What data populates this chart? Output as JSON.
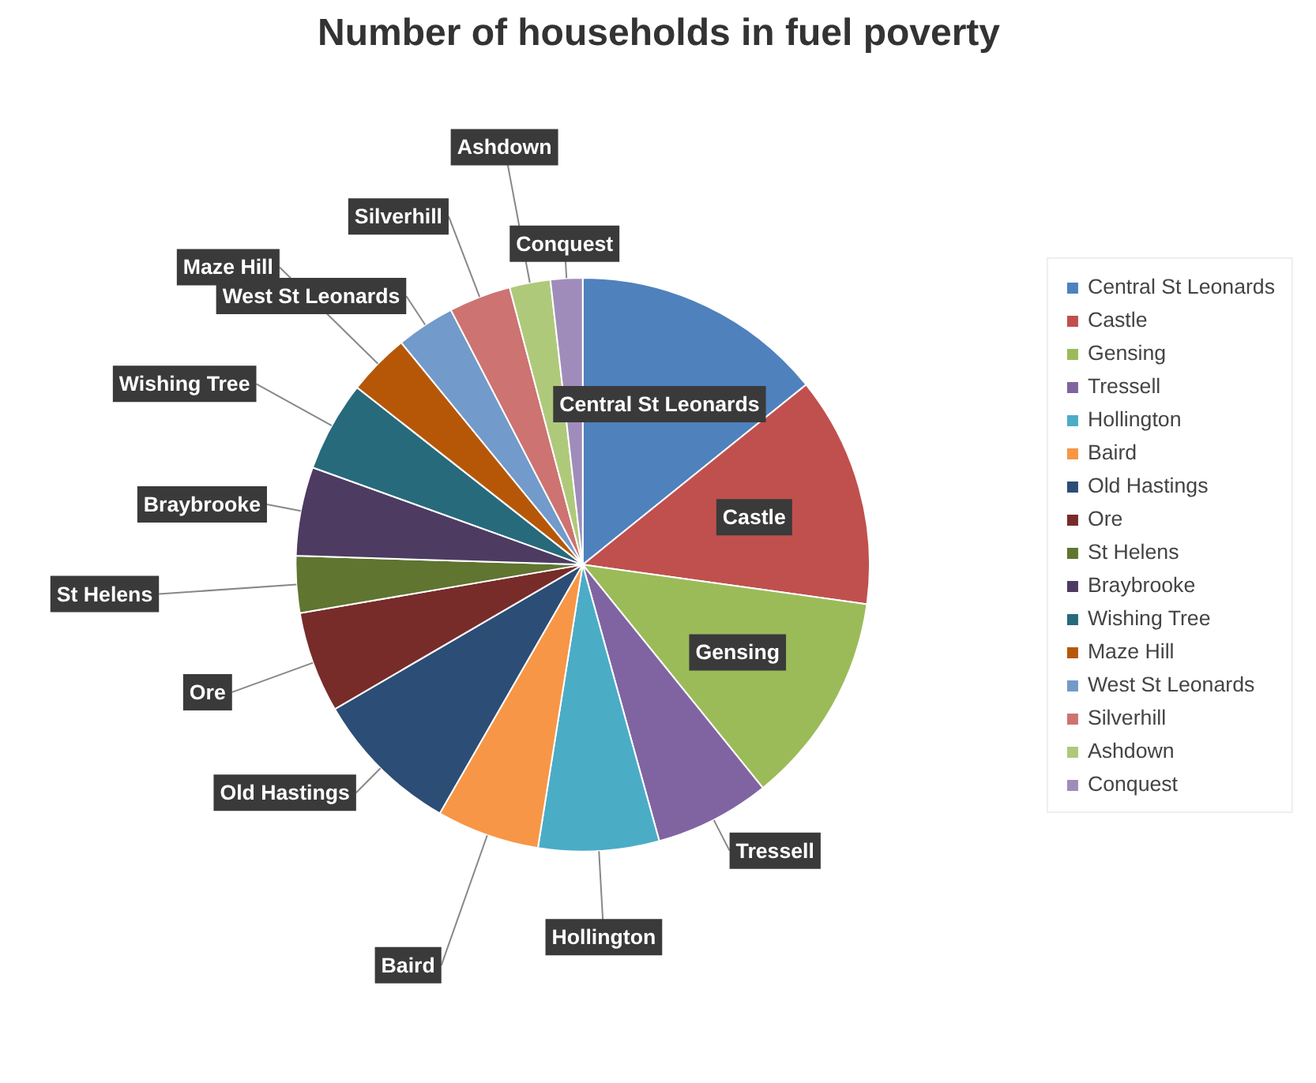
{
  "chart_data": {
    "type": "pie",
    "title": "Number of households in fuel poverty",
    "categories": [
      "Central St Leonards",
      "Castle",
      "Gensing",
      "Tressell",
      "Hollington",
      "Baird",
      "Old Hastings",
      "Ore",
      "St Helens",
      "Braybrooke",
      "Wishing Tree",
      "Maze Hill",
      "West St Leonards",
      "Silverhill",
      "Ashdown",
      "Conquest"
    ],
    "values": [
      14.2,
      13,
      12,
      6.5,
      6.8,
      5.8,
      8.3,
      5.7,
      3.2,
      5,
      5.1,
      3.5,
      3.3,
      3.5,
      2.3,
      1.8
    ],
    "colors": [
      "#4f81bd",
      "#c0504d",
      "#9bbb59",
      "#8064a2",
      "#4bacc6",
      "#f79646",
      "#2c4d75",
      "#772c2a",
      "#5f7530",
      "#4d3b62",
      "#276a7c",
      "#b65708",
      "#729aca",
      "#cd7371",
      "#afc97a",
      "#a08cba"
    ],
    "legend": "right"
  }
}
